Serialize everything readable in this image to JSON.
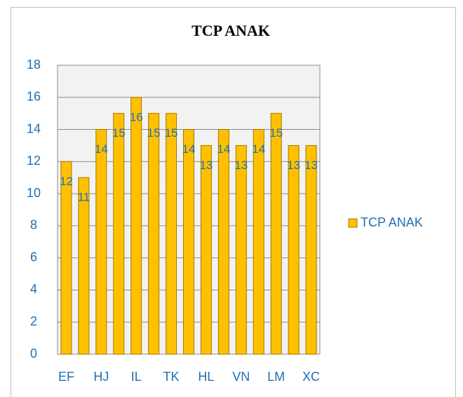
{
  "chart_data": {
    "type": "bar",
    "title": "TCP ANAK",
    "categories": [
      "EF",
      null,
      "HJ",
      null,
      "IL",
      null,
      "TK",
      null,
      "HL",
      null,
      "VN",
      null,
      "LM",
      null,
      "XC"
    ],
    "series": [
      {
        "name": "TCP ANAK",
        "color": "#ffc000",
        "values": [
          12,
          11,
          14,
          15,
          16,
          15,
          15,
          14,
          13,
          14,
          13,
          14,
          15,
          13,
          13
        ]
      }
    ],
    "ylim": [
      0,
      18
    ],
    "yticks": [
      0,
      2,
      4,
      6,
      8,
      10,
      12,
      14,
      16,
      18
    ],
    "grid": true,
    "legend": "right"
  }
}
